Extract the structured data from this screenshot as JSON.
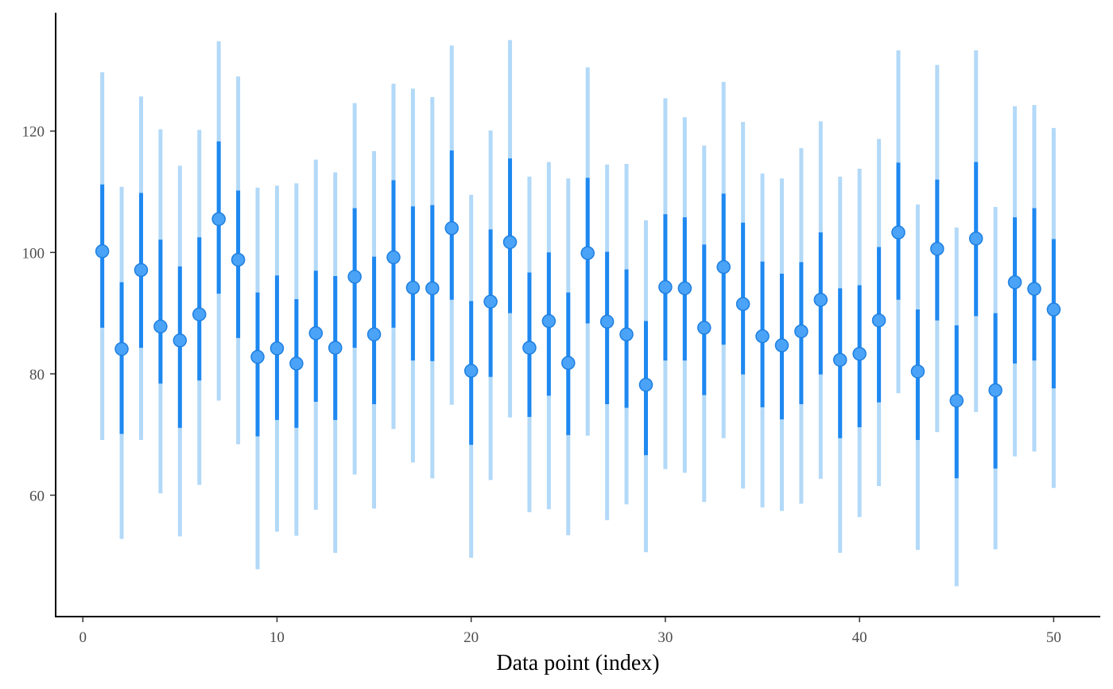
{
  "chart_data": {
    "type": "scatter",
    "subtype": "pointrange-with-intervals",
    "title": "",
    "xlabel": "Data point (index)",
    "ylabel": "",
    "xlim": [
      -1.4,
      52.4
    ],
    "ylim": [
      40,
      139.5
    ],
    "x_ticks": [
      0,
      10,
      20,
      30,
      40,
      50
    ],
    "y_ticks": [
      60,
      80,
      100,
      120
    ],
    "grid": false,
    "legend": "none",
    "colors": {
      "point": "#4aa3f7",
      "point_edge": "#1e7fe0",
      "inner_interval": "#1e88f0",
      "outer_interval": "#b3d9f8",
      "axis": "#000000",
      "tick_text": "#4d4d4d"
    },
    "points": [
      {
        "x": 1,
        "y": 100.2,
        "inner": [
          87.6,
          111.2
        ],
        "outer": [
          69.1,
          129.7
        ]
      },
      {
        "x": 2,
        "y": 84.1,
        "inner": [
          70.1,
          95.1
        ],
        "outer": [
          52.8,
          110.8
        ]
      },
      {
        "x": 3,
        "y": 97.1,
        "inner": [
          84.3,
          109.8
        ],
        "outer": [
          69.1,
          125.7
        ]
      },
      {
        "x": 4,
        "y": 87.8,
        "inner": [
          78.4,
          102.1
        ],
        "outer": [
          60.3,
          120.3
        ]
      },
      {
        "x": 5,
        "y": 85.5,
        "inner": [
          71.1,
          97.7
        ],
        "outer": [
          53.2,
          114.3
        ]
      },
      {
        "x": 6,
        "y": 89.8,
        "inner": [
          78.9,
          102.5
        ],
        "outer": [
          61.7,
          120.2
        ]
      },
      {
        "x": 7,
        "y": 105.5,
        "inner": [
          93.2,
          118.3
        ],
        "outer": [
          75.6,
          134.8
        ]
      },
      {
        "x": 8,
        "y": 98.8,
        "inner": [
          85.9,
          110.2
        ],
        "outer": [
          68.4,
          129.0
        ]
      },
      {
        "x": 9,
        "y": 82.8,
        "inner": [
          69.7,
          93.4
        ],
        "outer": [
          47.8,
          110.7
        ]
      },
      {
        "x": 10,
        "y": 84.2,
        "inner": [
          72.4,
          96.2
        ],
        "outer": [
          54.0,
          111.0
        ]
      },
      {
        "x": 11,
        "y": 81.7,
        "inner": [
          71.1,
          92.3
        ],
        "outer": [
          53.3,
          111.4
        ]
      },
      {
        "x": 12,
        "y": 86.7,
        "inner": [
          75.4,
          97.0
        ],
        "outer": [
          57.6,
          115.3
        ]
      },
      {
        "x": 13,
        "y": 84.3,
        "inner": [
          72.4,
          96.1
        ],
        "outer": [
          50.5,
          113.2
        ]
      },
      {
        "x": 14,
        "y": 96.0,
        "inner": [
          84.3,
          107.3
        ],
        "outer": [
          63.4,
          124.6
        ]
      },
      {
        "x": 15,
        "y": 86.5,
        "inner": [
          75.0,
          99.3
        ],
        "outer": [
          57.8,
          116.7
        ]
      },
      {
        "x": 16,
        "y": 99.2,
        "inner": [
          87.6,
          111.9
        ],
        "outer": [
          70.9,
          127.8
        ]
      },
      {
        "x": 17,
        "y": 94.2,
        "inner": [
          82.2,
          107.6
        ],
        "outer": [
          65.4,
          127.0
        ]
      },
      {
        "x": 18,
        "y": 94.1,
        "inner": [
          82.1,
          107.8
        ],
        "outer": [
          62.8,
          125.6
        ]
      },
      {
        "x": 19,
        "y": 104.0,
        "inner": [
          92.2,
          116.8
        ],
        "outer": [
          74.9,
          134.1
        ]
      },
      {
        "x": 20,
        "y": 80.5,
        "inner": [
          68.3,
          92.0
        ],
        "outer": [
          49.7,
          109.5
        ]
      },
      {
        "x": 21,
        "y": 91.9,
        "inner": [
          79.5,
          103.8
        ],
        "outer": [
          62.5,
          120.1
        ]
      },
      {
        "x": 22,
        "y": 101.7,
        "inner": [
          90.0,
          115.5
        ],
        "outer": [
          72.8,
          135.0
        ]
      },
      {
        "x": 23,
        "y": 84.3,
        "inner": [
          72.9,
          96.7
        ],
        "outer": [
          57.2,
          112.5
        ]
      },
      {
        "x": 24,
        "y": 88.7,
        "inner": [
          76.4,
          100.0
        ],
        "outer": [
          57.7,
          114.9
        ]
      },
      {
        "x": 25,
        "y": 81.8,
        "inner": [
          69.9,
          93.4
        ],
        "outer": [
          53.4,
          112.2
        ]
      },
      {
        "x": 26,
        "y": 99.9,
        "inner": [
          88.3,
          112.3
        ],
        "outer": [
          69.8,
          130.5
        ]
      },
      {
        "x": 27,
        "y": 88.6,
        "inner": [
          75.0,
          100.1
        ],
        "outer": [
          55.9,
          114.5
        ]
      },
      {
        "x": 28,
        "y": 86.5,
        "inner": [
          74.4,
          97.2
        ],
        "outer": [
          58.5,
          114.6
        ]
      },
      {
        "x": 29,
        "y": 78.2,
        "inner": [
          66.6,
          88.7
        ],
        "outer": [
          50.6,
          105.3
        ]
      },
      {
        "x": 30,
        "y": 94.3,
        "inner": [
          82.2,
          106.3
        ],
        "outer": [
          64.3,
          125.4
        ]
      },
      {
        "x": 31,
        "y": 94.1,
        "inner": [
          82.2,
          105.8
        ],
        "outer": [
          63.7,
          122.3
        ]
      },
      {
        "x": 32,
        "y": 87.6,
        "inner": [
          76.5,
          101.3
        ],
        "outer": [
          58.9,
          117.6
        ]
      },
      {
        "x": 33,
        "y": 97.6,
        "inner": [
          84.8,
          109.7
        ],
        "outer": [
          69.4,
          128.1
        ]
      },
      {
        "x": 34,
        "y": 91.5,
        "inner": [
          79.9,
          104.9
        ],
        "outer": [
          61.1,
          121.5
        ]
      },
      {
        "x": 35,
        "y": 86.2,
        "inner": [
          74.5,
          98.5
        ],
        "outer": [
          58.0,
          113.0
        ]
      },
      {
        "x": 36,
        "y": 84.7,
        "inner": [
          72.5,
          96.5
        ],
        "outer": [
          57.4,
          112.2
        ]
      },
      {
        "x": 37,
        "y": 87.0,
        "inner": [
          75.0,
          98.4
        ],
        "outer": [
          58.6,
          117.2
        ]
      },
      {
        "x": 38,
        "y": 92.2,
        "inner": [
          79.9,
          103.3
        ],
        "outer": [
          62.7,
          121.6
        ]
      },
      {
        "x": 39,
        "y": 82.3,
        "inner": [
          69.4,
          94.1
        ],
        "outer": [
          50.5,
          112.5
        ]
      },
      {
        "x": 40,
        "y": 83.3,
        "inner": [
          71.2,
          94.6
        ],
        "outer": [
          56.4,
          113.8
        ]
      },
      {
        "x": 41,
        "y": 88.8,
        "inner": [
          75.3,
          100.9
        ],
        "outer": [
          61.5,
          118.7
        ]
      },
      {
        "x": 42,
        "y": 103.3,
        "inner": [
          92.2,
          114.8
        ],
        "outer": [
          76.8,
          133.3
        ]
      },
      {
        "x": 43,
        "y": 80.4,
        "inner": [
          69.1,
          90.6
        ],
        "outer": [
          51.0,
          107.9
        ]
      },
      {
        "x": 44,
        "y": 100.6,
        "inner": [
          88.8,
          112.0
        ],
        "outer": [
          70.4,
          130.9
        ]
      },
      {
        "x": 45,
        "y": 75.6,
        "inner": [
          62.8,
          88.0
        ],
        "outer": [
          45.0,
          104.1
        ]
      },
      {
        "x": 46,
        "y": 102.3,
        "inner": [
          89.5,
          114.9
        ],
        "outer": [
          73.7,
          133.3
        ]
      },
      {
        "x": 47,
        "y": 77.3,
        "inner": [
          64.4,
          90.0
        ],
        "outer": [
          51.1,
          107.5
        ]
      },
      {
        "x": 48,
        "y": 95.1,
        "inner": [
          81.7,
          105.8
        ],
        "outer": [
          66.4,
          124.1
        ]
      },
      {
        "x": 49,
        "y": 94.0,
        "inner": [
          82.2,
          107.3
        ],
        "outer": [
          67.2,
          124.3
        ]
      },
      {
        "x": 50,
        "y": 90.6,
        "inner": [
          77.6,
          102.2
        ],
        "outer": [
          61.2,
          120.5
        ]
      }
    ]
  }
}
